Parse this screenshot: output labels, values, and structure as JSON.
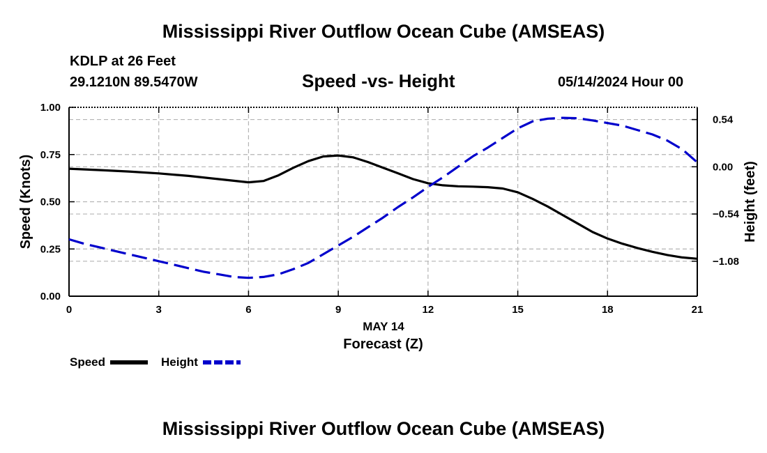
{
  "header": {
    "title": "Mississippi River Outflow Ocean Cube (AMSEAS)",
    "station": "KDLP at 26 Feet",
    "coords": "29.1210N  89.5470W",
    "datetime": "05/14/2024 Hour 00"
  },
  "footer": {
    "title": "Mississippi River Outflow Ocean Cube (AMSEAS)"
  },
  "colors": {
    "speed": "#000000",
    "height": "#0000cc",
    "grid": "#b4b4b4"
  },
  "chart_data": {
    "type": "line",
    "title": "Speed -vs- Height",
    "xlabel": "Forecast (Z)",
    "xdate": "MAY 14",
    "ylabel": "Speed (Knots)",
    "y2label": "Height (feet)",
    "xlim": [
      0,
      21
    ],
    "ylim": [
      0,
      1.0
    ],
    "y2lim": [
      -1.48,
      0.68
    ],
    "xticks": [
      0,
      3,
      6,
      9,
      12,
      15,
      18,
      21
    ],
    "yticks": [
      0.0,
      0.25,
      0.5,
      0.75,
      1.0
    ],
    "yticklabels": [
      "0.00",
      "0.25",
      "0.50",
      "0.75",
      "1.00"
    ],
    "y2ticks": [
      0.54,
      0.0,
      -0.54,
      -1.08
    ],
    "y2ticklabels": [
      "0.54",
      "0.00",
      "−0.54",
      "−1.08"
    ],
    "series": [
      {
        "name": "Speed",
        "axis": "left",
        "style": "solid",
        "x": [
          0,
          1,
          2,
          3,
          4,
          5,
          6,
          6.5,
          7,
          7.5,
          8,
          8.5,
          9,
          9.5,
          10,
          10.5,
          11,
          11.5,
          12,
          12.5,
          13,
          13.5,
          14,
          14.5,
          15,
          15.5,
          16,
          16.5,
          17,
          17.5,
          18,
          18.5,
          19,
          19.5,
          20,
          20.5,
          21
        ],
        "values": [
          0.675,
          0.668,
          0.66,
          0.65,
          0.637,
          0.62,
          0.603,
          0.61,
          0.64,
          0.68,
          0.715,
          0.74,
          0.745,
          0.735,
          0.71,
          0.68,
          0.65,
          0.62,
          0.598,
          0.587,
          0.582,
          0.58,
          0.577,
          0.57,
          0.55,
          0.515,
          0.475,
          0.43,
          0.385,
          0.34,
          0.305,
          0.278,
          0.255,
          0.235,
          0.218,
          0.205,
          0.198
        ]
      },
      {
        "name": "Height",
        "axis": "right",
        "style": "dashed",
        "x": [
          0,
          0.5,
          1,
          1.5,
          2,
          2.5,
          3,
          3.5,
          4,
          4.5,
          5,
          5.5,
          6,
          6.5,
          7,
          7.5,
          8,
          8.5,
          9,
          9.5,
          10,
          10.5,
          11,
          11.5,
          12,
          12.5,
          13,
          13.5,
          14,
          14.5,
          15,
          15.5,
          16,
          16.5,
          17,
          17.5,
          18,
          18.5,
          19,
          19.5,
          20,
          20.5,
          21
        ],
        "values": [
          -0.83,
          -0.88,
          -0.92,
          -0.96,
          -1.0,
          -1.04,
          -1.08,
          -1.12,
          -1.16,
          -1.2,
          -1.23,
          -1.26,
          -1.27,
          -1.26,
          -1.23,
          -1.17,
          -1.1,
          -1.0,
          -0.9,
          -0.8,
          -0.69,
          -0.58,
          -0.46,
          -0.35,
          -0.23,
          -0.12,
          0.0,
          0.12,
          0.22,
          0.33,
          0.44,
          0.52,
          0.55,
          0.56,
          0.555,
          0.53,
          0.5,
          0.47,
          0.42,
          0.37,
          0.3,
          0.2,
          0.05
        ]
      }
    ],
    "legend": [
      {
        "label": "Speed",
        "style": "solid"
      },
      {
        "label": "Height",
        "style": "dashed"
      }
    ]
  }
}
